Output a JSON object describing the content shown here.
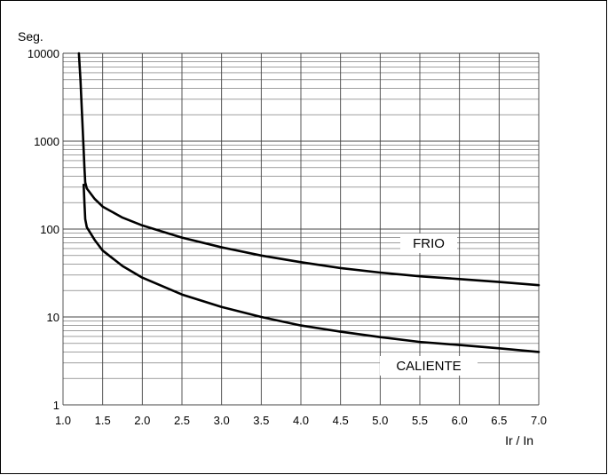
{
  "chart_data": {
    "type": "line",
    "title": "",
    "xlabel": "Ir / In",
    "ylabel": "Seg.",
    "xlim": [
      1.0,
      7.0
    ],
    "ylim": [
      1,
      10000
    ],
    "yscale": "log",
    "grid": true,
    "x_ticks": [
      "1.0",
      "1.5",
      "2.0",
      "2.5",
      "3.0",
      "3.5",
      "4.0",
      "4.5",
      "5.0",
      "5.5",
      "6.0",
      "6.5",
      "7.0"
    ],
    "y_ticks": [
      "1",
      "10",
      "100",
      "1000",
      "10000"
    ],
    "series": [
      {
        "name": "FRIO",
        "x": [
          1.2,
          1.22,
          1.24,
          1.26,
          1.27,
          1.28,
          1.3,
          1.4,
          1.5,
          1.75,
          2.0,
          2.5,
          3.0,
          3.5,
          4.0,
          4.5,
          5.0,
          5.5,
          6.0,
          6.5,
          7.0
        ],
        "y": [
          10000,
          5000,
          2000,
          800,
          500,
          340,
          290,
          220,
          180,
          135,
          110,
          80,
          62,
          50,
          42,
          36,
          32,
          29,
          27,
          25,
          23
        ]
      },
      {
        "name": "CALIENTE",
        "x": [
          1.26,
          1.27,
          1.28,
          1.3,
          1.4,
          1.5,
          1.75,
          2.0,
          2.5,
          3.0,
          3.5,
          4.0,
          4.5,
          5.0,
          5.5,
          6.0,
          6.5,
          7.0
        ],
        "y": [
          320,
          200,
          130,
          105,
          75,
          57,
          38,
          28,
          18,
          13,
          10,
          8,
          6.8,
          5.9,
          5.2,
          4.8,
          4.4,
          4.0
        ]
      }
    ]
  }
}
